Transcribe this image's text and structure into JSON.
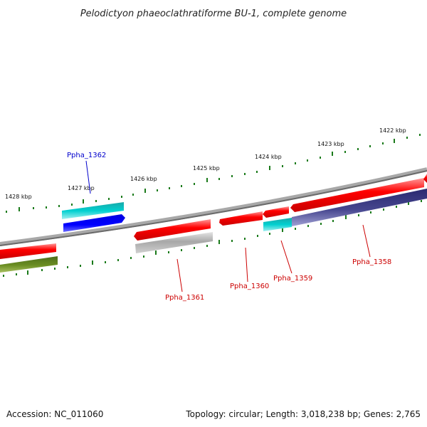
{
  "title": "Pelodictyon phaeoclathratiforme BU-1, complete genome",
  "footer": {
    "accession": "Accession: NC_011060",
    "summary": "Topology: circular; Length: 3,018,238 bp; Genes: 2,765"
  },
  "scale_labels": [
    "1422 kbp",
    "1423 kbp",
    "1424 kbp",
    "1425 kbp",
    "1426 kbp",
    "1427 kbp",
    "1428 kbp"
  ],
  "gene_labels": [
    "Ppha_1362",
    "Ppha_1361",
    "Ppha_1360",
    "Ppha_1359",
    "Ppha_1358"
  ],
  "colors": {
    "forward_gene": "#ff0000",
    "backbone": "#7f7f7f",
    "highlight_label": "#0000cc",
    "default_label": "#cc0000",
    "tick": "#1a7a1a"
  }
}
